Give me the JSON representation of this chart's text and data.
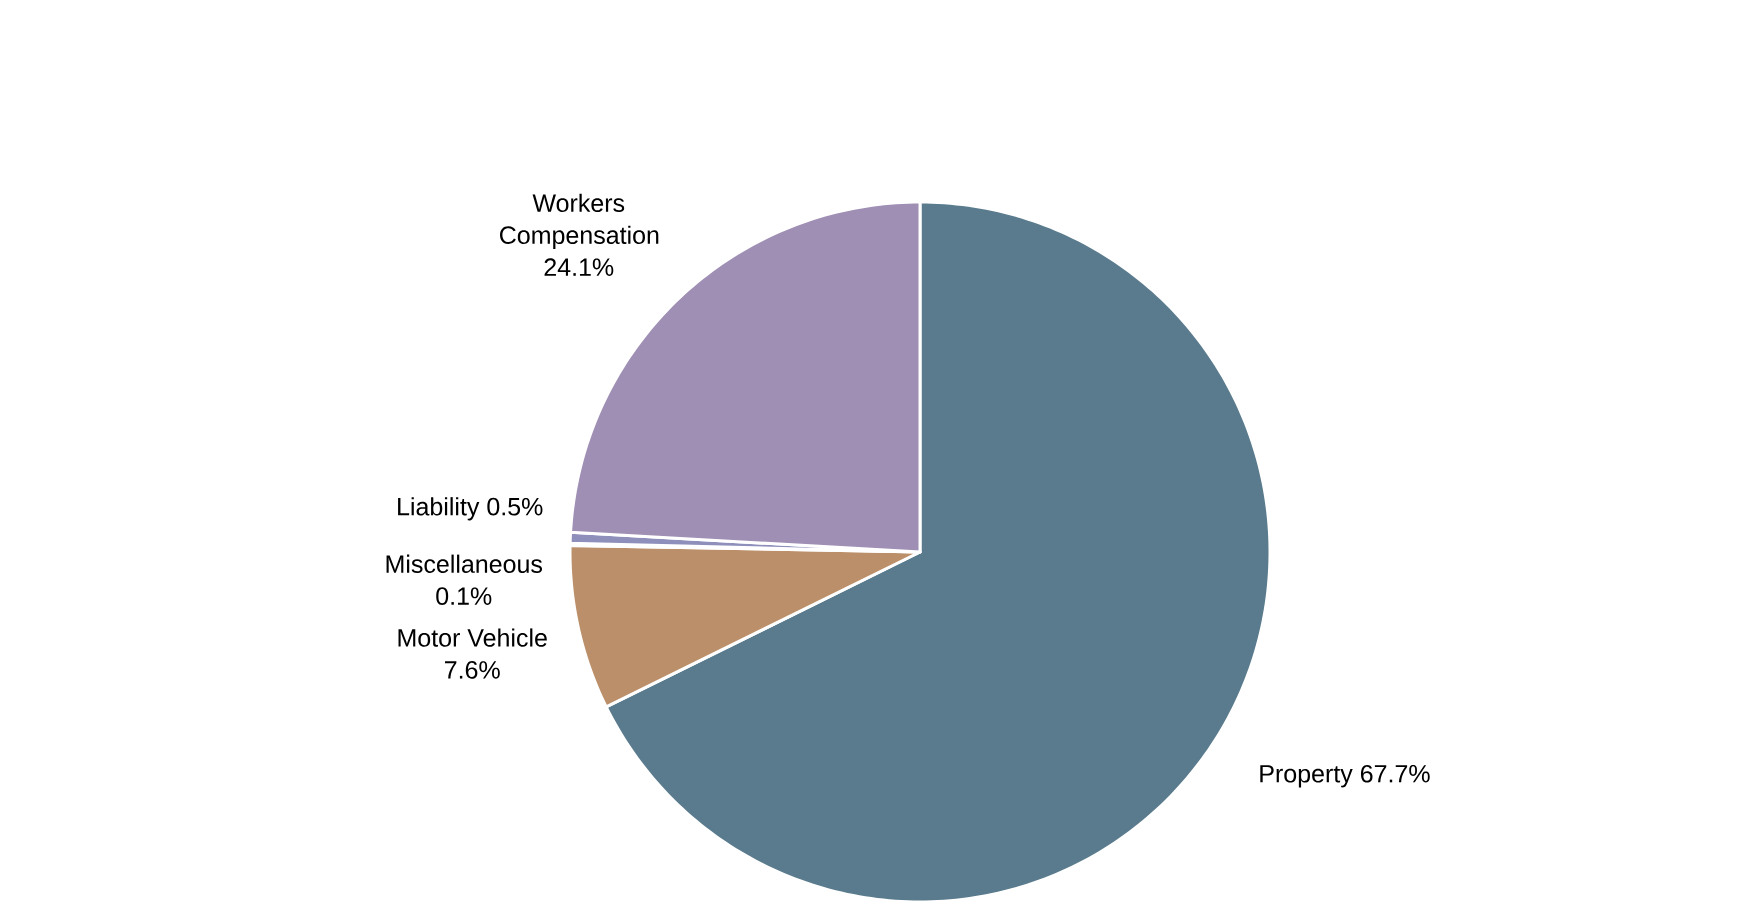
{
  "chart_data": {
    "type": "pie",
    "categories": [
      "Property",
      "Motor Vehicle",
      "Miscellaneous",
      "Liability",
      "Workers Compensation"
    ],
    "values": [
      67.7,
      7.6,
      0.1,
      0.5,
      24.1
    ],
    "value_labels": [
      "67.7%",
      "7.6%",
      "0.1%",
      "0.5%",
      "24.1%"
    ],
    "colors": [
      "#5a7b8d",
      "#bb8f69",
      "#b3b6d6",
      "#8e8fbb",
      "#9f8fb4"
    ]
  }
}
